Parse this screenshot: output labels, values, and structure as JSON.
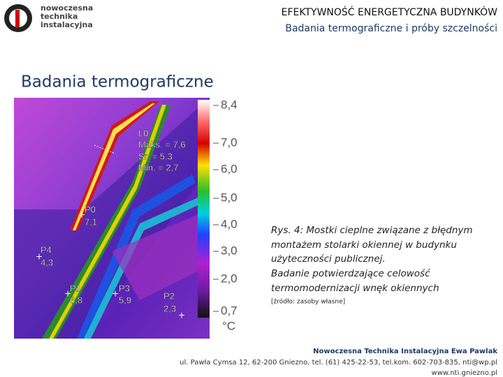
{
  "logo": {
    "lines": [
      "nowoczesna",
      "technika",
      "instalacyjna"
    ]
  },
  "header": {
    "title": "EFEKTYWNOŚĆ ENERGETYCZNA BUDYNKÓW",
    "subtitle": "Badania termograficzne i próby szczelności"
  },
  "section_title": "Badania termograficzne",
  "image": {
    "labels": [
      "L0",
      "Maks. = 7,6",
      "Śr. = 5,3",
      "Min. = 2,7",
      "P0",
      "7,1",
      "P4",
      "4,3",
      "P1",
      "6,8",
      "P3",
      "5,9",
      "P2",
      "2,3"
    ],
    "scale": [
      "8,4",
      "7,0",
      "6,0",
      "5,0",
      "4,0",
      "3,0",
      "2,0",
      "0,7"
    ],
    "unit": "°C"
  },
  "caption": {
    "lines": [
      "Rys. 4: Mostki cieplne związane z błędnym",
      "montażem stolarki okiennej w budynku",
      "użyteczności publicznej.",
      "Badanie potwierdzające celowość",
      "termomodernizacji wnęk okiennych"
    ],
    "source": "[źródło: zasoby własne]"
  },
  "footer": {
    "lines": [
      "Nowoczesna Technika Instalacyjna Ewa Pawlak",
      "ul. Pawła Cymsa 12, 62-200 Gniezno, tel. (61) 425-22-53, tel.kom. 602-703-835, nti@wp.pl",
      "www.nti.gniezno.pl"
    ]
  }
}
